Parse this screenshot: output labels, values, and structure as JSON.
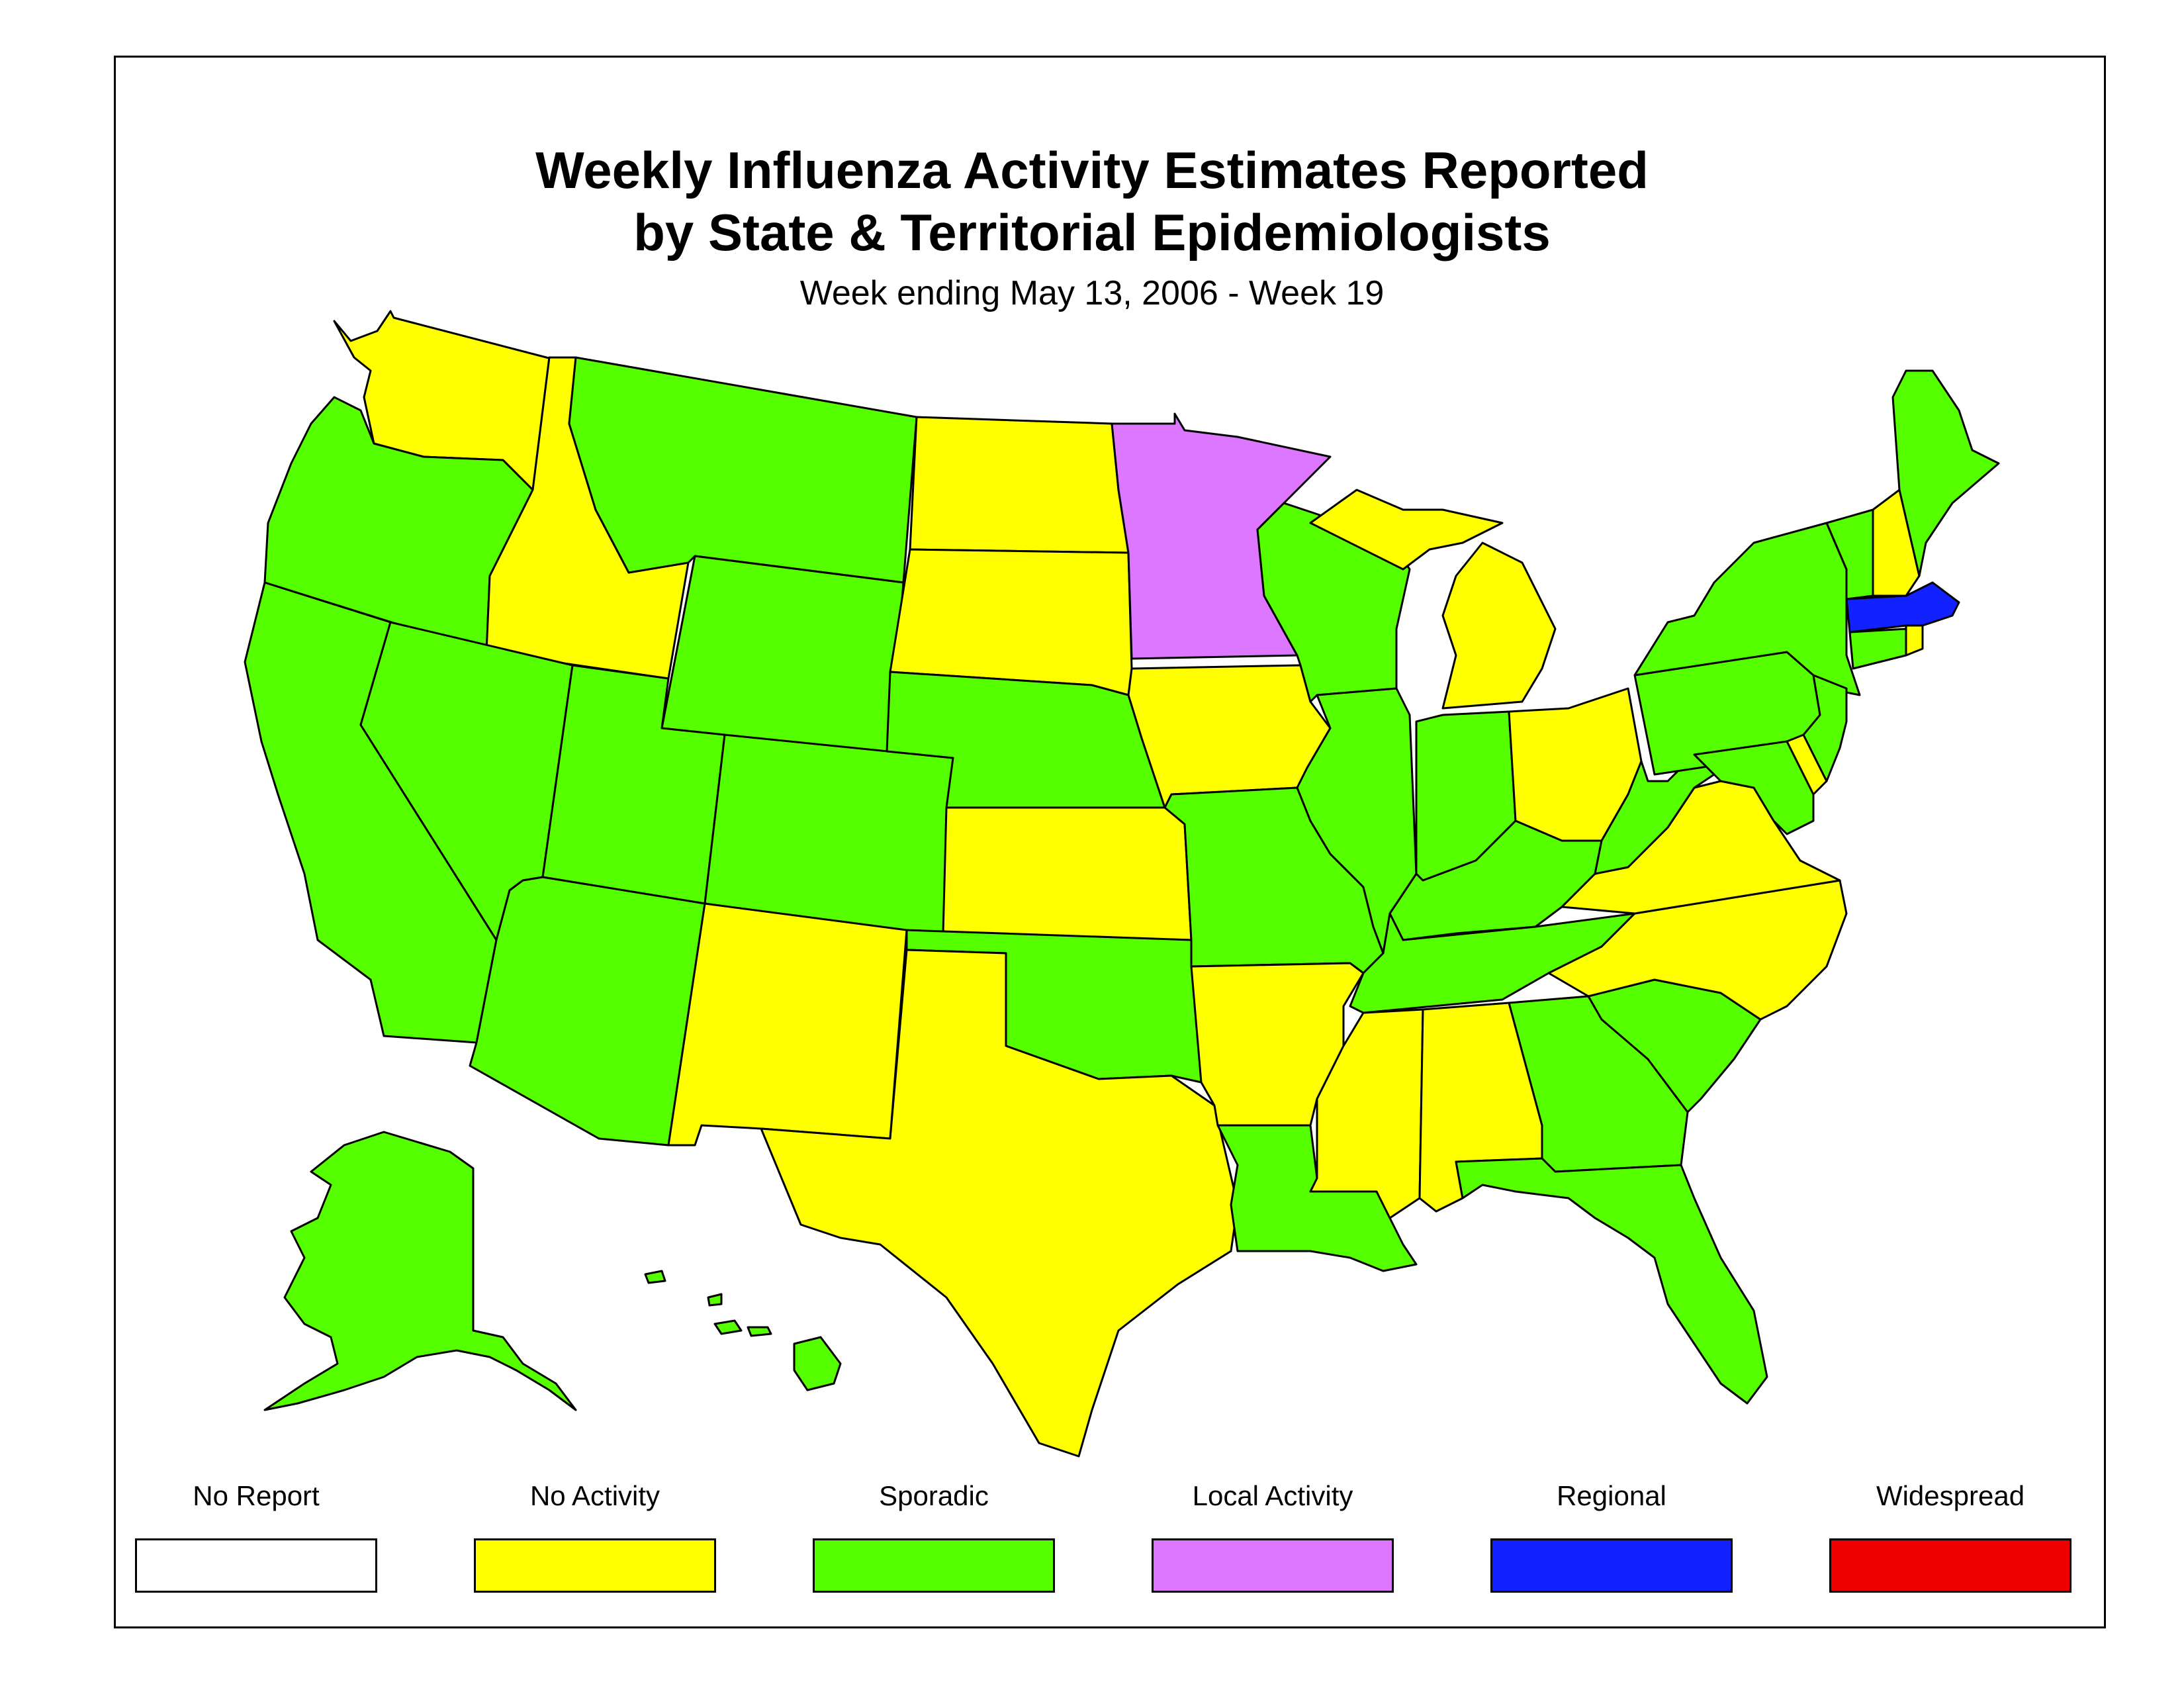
{
  "title": {
    "line1": "Weekly Influenza Activity Estimates Reported",
    "line2": "by State & Territorial Epidemiologists",
    "subtitle": "Week ending May 13, 2006 - Week 19"
  },
  "legend": [
    {
      "key": "none",
      "label": "No Report",
      "color": "#ffffff"
    },
    {
      "key": "noact",
      "label": "No Activity",
      "color": "#ffff00"
    },
    {
      "key": "sporadic",
      "label": "Sporadic",
      "color": "#55ff00"
    },
    {
      "key": "local",
      "label": "Local Activity",
      "color": "#dd77ff"
    },
    {
      "key": "regional",
      "label": "Regional",
      "color": "#1122ff"
    },
    {
      "key": "widespread",
      "label": "Widespread",
      "color": "#ee0000"
    }
  ],
  "states": [
    {
      "name": "Washington",
      "level": "noact"
    },
    {
      "name": "Oregon",
      "level": "sporadic"
    },
    {
      "name": "California",
      "level": "sporadic"
    },
    {
      "name": "Idaho",
      "level": "noact"
    },
    {
      "name": "Nevada",
      "level": "sporadic"
    },
    {
      "name": "Montana",
      "level": "sporadic"
    },
    {
      "name": "Wyoming",
      "level": "sporadic"
    },
    {
      "name": "Utah",
      "level": "sporadic"
    },
    {
      "name": "Arizona",
      "level": "sporadic"
    },
    {
      "name": "Colorado",
      "level": "sporadic"
    },
    {
      "name": "New Mexico",
      "level": "noact"
    },
    {
      "name": "North Dakota",
      "level": "noact"
    },
    {
      "name": "South Dakota",
      "level": "noact"
    },
    {
      "name": "Nebraska",
      "level": "sporadic"
    },
    {
      "name": "Kansas",
      "level": "noact"
    },
    {
      "name": "Oklahoma",
      "level": "sporadic"
    },
    {
      "name": "Texas",
      "level": "noact"
    },
    {
      "name": "Minnesota",
      "level": "local"
    },
    {
      "name": "Iowa",
      "level": "noact"
    },
    {
      "name": "Missouri",
      "level": "sporadic"
    },
    {
      "name": "Arkansas",
      "level": "noact"
    },
    {
      "name": "Louisiana",
      "level": "sporadic"
    },
    {
      "name": "Wisconsin",
      "level": "sporadic"
    },
    {
      "name": "Illinois",
      "level": "sporadic"
    },
    {
      "name": "Michigan",
      "level": "noact"
    },
    {
      "name": "Indiana",
      "level": "sporadic"
    },
    {
      "name": "Ohio",
      "level": "noact"
    },
    {
      "name": "Kentucky",
      "level": "sporadic"
    },
    {
      "name": "Tennessee",
      "level": "sporadic"
    },
    {
      "name": "Mississippi",
      "level": "noact"
    },
    {
      "name": "Alabama",
      "level": "noact"
    },
    {
      "name": "Georgia",
      "level": "sporadic"
    },
    {
      "name": "Florida",
      "level": "sporadic"
    },
    {
      "name": "South Carolina",
      "level": "sporadic"
    },
    {
      "name": "North Carolina",
      "level": "noact"
    },
    {
      "name": "Virginia",
      "level": "noact"
    },
    {
      "name": "West Virginia",
      "level": "sporadic"
    },
    {
      "name": "Pennsylvania",
      "level": "sporadic"
    },
    {
      "name": "New York",
      "level": "sporadic"
    },
    {
      "name": "Maryland",
      "level": "sporadic"
    },
    {
      "name": "Delaware",
      "level": "noact"
    },
    {
      "name": "New Jersey",
      "level": "sporadic"
    },
    {
      "name": "Connecticut",
      "level": "sporadic"
    },
    {
      "name": "Rhode Island",
      "level": "noact"
    },
    {
      "name": "Massachusetts",
      "level": "regional"
    },
    {
      "name": "Vermont",
      "level": "sporadic"
    },
    {
      "name": "New Hampshire",
      "level": "noact"
    },
    {
      "name": "Maine",
      "level": "sporadic"
    },
    {
      "name": "Alaska",
      "level": "sporadic"
    },
    {
      "name": "Hawaii",
      "level": "sporadic"
    }
  ]
}
